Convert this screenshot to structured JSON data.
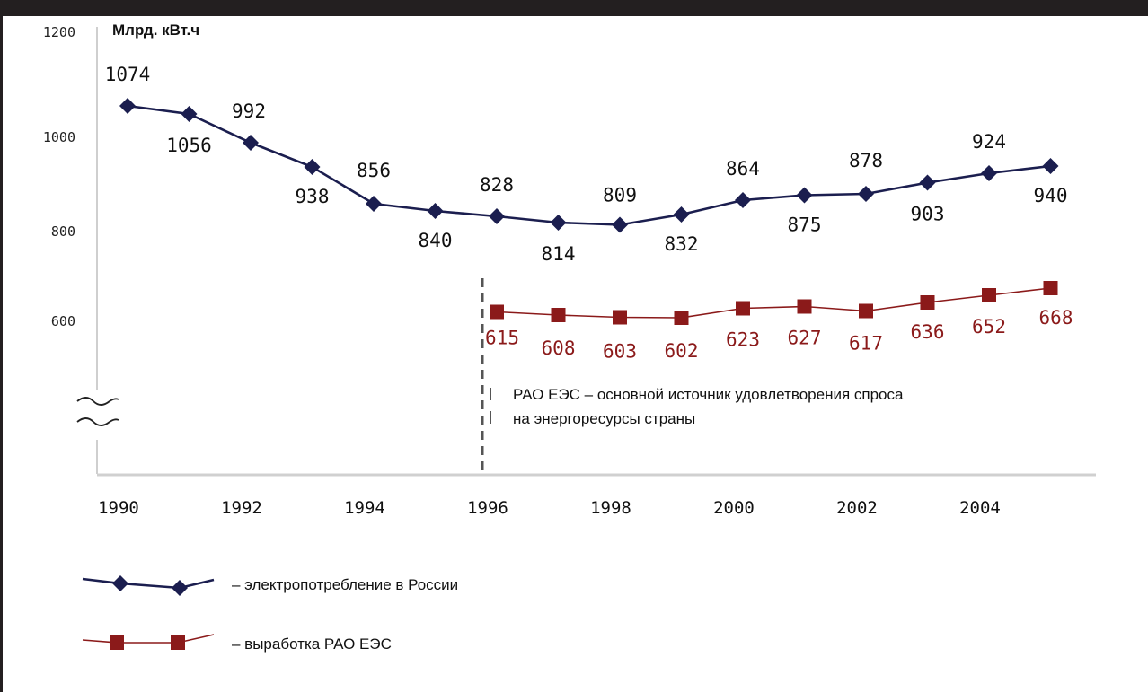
{
  "chart_data": {
    "type": "line",
    "unit_label": "Млрд. кВт.ч",
    "ylim": [
      400,
      1200
    ],
    "yticks": [
      1200,
      1000,
      800,
      600
    ],
    "xticks": [
      "1990",
      "1992",
      "1994",
      "1996",
      "1998",
      "2000",
      "2002",
      "2004"
    ],
    "axis_break": true,
    "grid": false,
    "series": [
      {
        "name": "– электропотребление в России",
        "color": "#1b1e4f",
        "marker": "diamond",
        "x": [
          1990,
          1991,
          1992,
          1993,
          1994,
          1995,
          1996,
          1997,
          1998,
          1999,
          2000,
          2001,
          2002,
          2003,
          2004,
          2005
        ],
        "values": [
          1074,
          1056,
          992,
          938,
          856,
          840,
          828,
          814,
          809,
          832,
          864,
          875,
          878,
          903,
          924,
          940
        ],
        "labels": [
          "1074",
          "1056",
          "992",
          "938",
          "856",
          "840",
          "828",
          "814",
          "809",
          "832",
          "864",
          "875",
          "878",
          "903",
          "924",
          "940"
        ]
      },
      {
        "name": "– выработка РАО ЕЭС",
        "color": "#8b1a1a",
        "marker": "square",
        "x": [
          1996,
          1997,
          1998,
          1999,
          2000,
          2001,
          2002,
          2003,
          2004,
          2005
        ],
        "values": [
          615,
          608,
          603,
          602,
          623,
          627,
          617,
          636,
          652,
          668
        ],
        "labels": [
          "615",
          "608",
          "603",
          "602",
          "623",
          "627",
          "617",
          "636",
          "652",
          "668"
        ]
      }
    ],
    "annotation": {
      "line1": "РАО ЕЭС – основной источник удовлетворения спроса",
      "line2": "на энергоресурсы страны",
      "at_year": 1996
    }
  }
}
